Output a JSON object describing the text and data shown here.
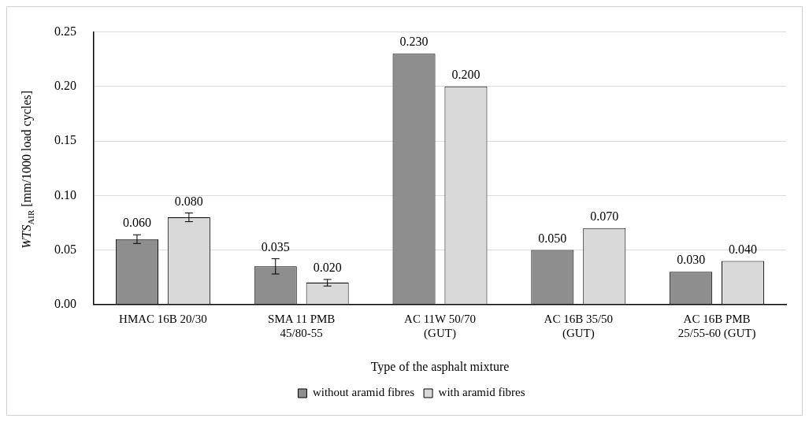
{
  "chart_data": {
    "type": "bar",
    "xlabel": "Type of the asphalt mixture",
    "ylabel": "WTS$_{AIR}$ [mm/1000 load cycles]",
    "categories": [
      "HMAC 16B 20/30",
      "SMA 11 PMB 45/80-55",
      "AC 11W 50/70 (GUT)",
      "AC 16B 35/50 (GUT)",
      "AC 16B PMB 25/55-60 (GUT)"
    ],
    "series": [
      {
        "name": "without aramid fibres",
        "color": "#8e8e8e",
        "values": [
          0.06,
          0.035,
          0.23,
          0.05,
          0.03
        ],
        "errors": [
          0.004,
          0.007,
          null,
          null,
          null
        ],
        "value_labels": [
          "0.060",
          "0.035",
          "0.230",
          "0.050",
          "0.030"
        ]
      },
      {
        "name": "with aramid fibres",
        "color": "#d9d9d9",
        "values": [
          0.08,
          0.02,
          0.2,
          0.07,
          0.04
        ],
        "errors": [
          0.004,
          0.003,
          null,
          null,
          null
        ],
        "value_labels": [
          "0.080",
          "0.020",
          "0.200",
          "0.070",
          "0.040"
        ]
      }
    ],
    "ylim": [
      0,
      0.25
    ],
    "yticks": [
      {
        "value": 0,
        "label": "0.00"
      },
      {
        "value": 0.05,
        "label": "0.05"
      },
      {
        "value": 0.1,
        "label": "0.10"
      },
      {
        "value": 0.15,
        "label": "0.15"
      },
      {
        "value": 0.2,
        "label": "0.20"
      },
      {
        "value": 0.25,
        "label": "0.25"
      }
    ],
    "grid": "y",
    "legend": "bottom"
  }
}
